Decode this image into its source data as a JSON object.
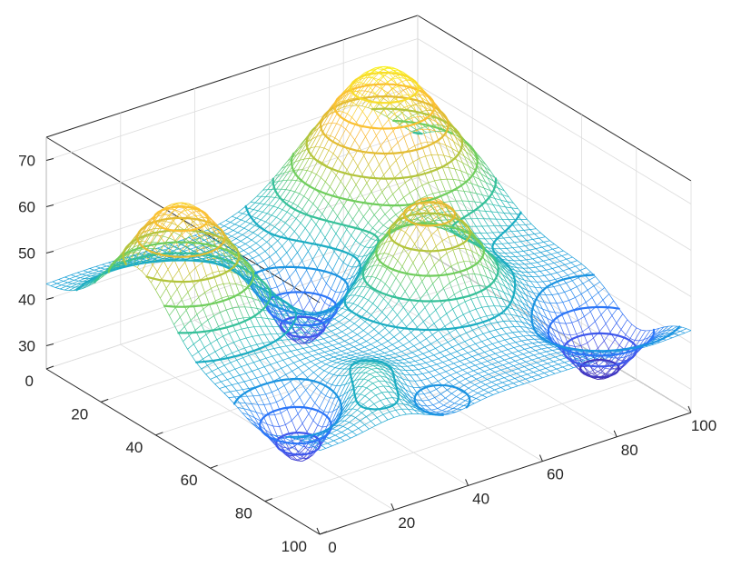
{
  "chart_data": {
    "type": "surface-mesh-3d",
    "title": "",
    "xlabel": "",
    "ylabel": "",
    "zlabel": "",
    "x_ticks": [
      "0",
      "20",
      "40",
      "60",
      "80",
      "100"
    ],
    "y_ticks": [
      "0",
      "20",
      "40",
      "60",
      "80",
      "100"
    ],
    "z_ticks": [
      "30",
      "40",
      "50",
      "60",
      "70"
    ],
    "xlim": [
      0,
      100
    ],
    "ylim": [
      0,
      100
    ],
    "zlim": [
      25,
      75
    ],
    "grid": true,
    "colormap": "parula",
    "colormap_stops": [
      "#3e26a8",
      "#4352ea",
      "#2a79f8",
      "#16a0d6",
      "#26bcaa",
      "#72cd5b",
      "#c9c131",
      "#fbb735",
      "#f8dc2b",
      "#f9fb0e"
    ],
    "z_range_colored": [
      28,
      75
    ],
    "contour_levels": [
      30,
      34,
      38,
      42,
      46,
      50,
      54,
      58,
      62,
      66,
      70
    ],
    "mesh_resolution": 60,
    "surface_base_z": 43,
    "surface_features": [
      {
        "kind": "peak",
        "x": 80,
        "y": 15,
        "height": 31,
        "spread": 14
      },
      {
        "kind": "peak",
        "x": 62,
        "y": 56,
        "height": 22,
        "spread": 10
      },
      {
        "kind": "peak",
        "x": 12,
        "y": 33,
        "height": 26,
        "spread": 12
      },
      {
        "kind": "peak",
        "x": 22,
        "y": 85,
        "height": 9,
        "spread": 9
      },
      {
        "kind": "valley",
        "x": 45,
        "y": 33,
        "height": -14,
        "spread": 7
      },
      {
        "kind": "valley",
        "x": 12,
        "y": 79,
        "height": -16,
        "spread": 7
      },
      {
        "kind": "valley",
        "x": 90,
        "y": 80,
        "height": -15,
        "spread": 8
      },
      {
        "kind": "valley",
        "x": 34,
        "y": 92,
        "height": -5,
        "spread": 6
      }
    ]
  }
}
